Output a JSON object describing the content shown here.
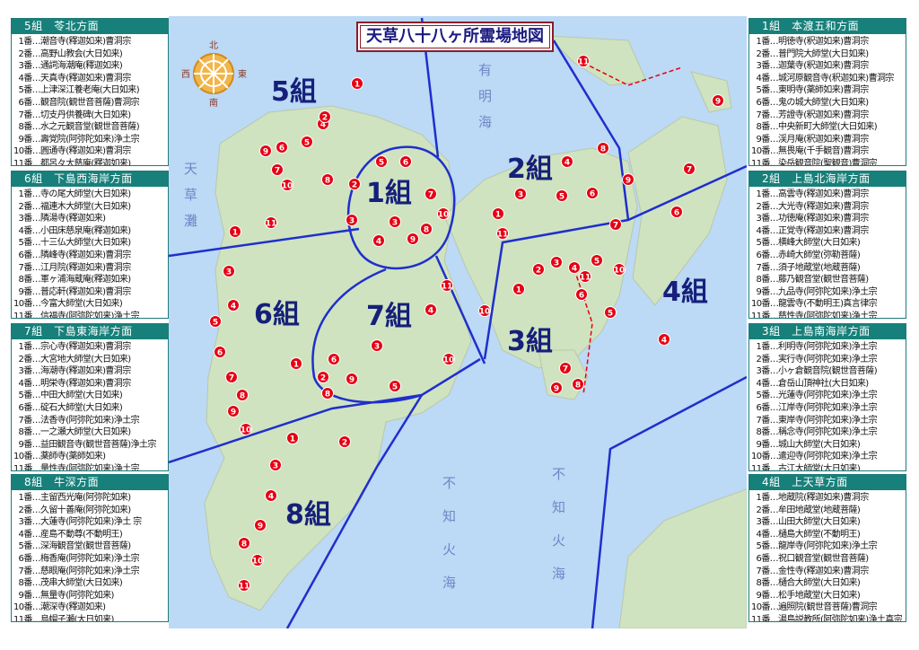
{
  "title": "天草八十八ヶ所霊場地図",
  "compass": {
    "north": "北",
    "east": "東",
    "west": "西",
    "south": "南",
    "icon": "dharma-wheel-compass-icon"
  },
  "sea_labels": {
    "amakusa_nada": "天草灘",
    "ariake_kai": "有明海",
    "shiranui_kai": "不知火海",
    "shiranui_kai_east": "不知火海"
  },
  "group_labels": [
    "1組",
    "2組",
    "3組",
    "4組",
    "5組",
    "6組",
    "7組",
    "8組"
  ],
  "colors": {
    "header": "#17807a",
    "boundary": "#1f2fcc",
    "marker": "#e60012",
    "sea": "#bcd9f5",
    "land": "#cfe3c0"
  },
  "left_panels": [
    {
      "header": "5組　苓北方面",
      "items": [
        [
          "1番…",
          "潮音寺(釋迦如来)曹洞宗"
        ],
        [
          "2番…",
          "高野山教会(大日如来)"
        ],
        [
          "3番…",
          "通詞海潮庵(釋迦如来)"
        ],
        [
          "4番…",
          "天真寺(釋迦如来)曹洞宗"
        ],
        [
          "5番…",
          "上津深江養老庵(大日如来)"
        ],
        [
          "6番…",
          "観音院(観世音菩薩)曹洞宗"
        ],
        [
          "7番…",
          "切支丹供養碑(大日如来)"
        ],
        [
          "8番…",
          "水之元観音堂(観世音菩薩)"
        ],
        [
          "9番…",
          "壽覚院(阿弥陀如来)浄土宗"
        ],
        [
          "10番…",
          "圓通寺(釋迦如来)曹洞宗"
        ],
        [
          "11番…",
          "都呂々大慈庵(釋迦如来)"
        ]
      ]
    },
    {
      "header": "6組　下島西海岸方面",
      "items": [
        [
          "1番…",
          "寺の尾大師堂(大日如来)"
        ],
        [
          "2番…",
          "福連木大師堂(大日如来)"
        ],
        [
          "3番…",
          "隣湯寺(釋迦如来)"
        ],
        [
          "4番…",
          "小田床慈泉庵(釋迦如来)"
        ],
        [
          "5番…",
          "十三仏大師堂(大日如来)"
        ],
        [
          "6番…",
          "隣峰寺(釋迦如来)曹洞宗"
        ],
        [
          "7番…",
          "江月院(釋迦如来)曹洞宗"
        ],
        [
          "8番…",
          "軍ヶ浦海蔵庵(釋迦如来)"
        ],
        [
          "9番…",
          "普応軒(釋迦如来)曹洞宗"
        ],
        [
          "10番…",
          "今富大師堂(大日如来)"
        ],
        [
          "11番…",
          "信福寺(阿弥陀如来)浄土宗"
        ]
      ]
    },
    {
      "header": "7組　下島東海岸方面",
      "items": [
        [
          "1番…",
          "宗心寺(釋迦如来)曹洞宗"
        ],
        [
          "2番…",
          "大宮地大師堂(大日如来)"
        ],
        [
          "3番…",
          "海潮寺(釋迦如来)曹洞宗"
        ],
        [
          "4番…",
          "明栄寺(釋迦如来)曹洞宗"
        ],
        [
          "5番…",
          "中田大師堂(大日如来)"
        ],
        [
          "6番…",
          "碇石大師堂(大日如来)"
        ],
        [
          "7番…",
          "法香寺(阿弥陀如来)浄土宗"
        ],
        [
          "8番…",
          "一之瀬大師堂(大日如来)"
        ],
        [
          "9番…",
          "益田観音寺(観世音菩薩)浄土宗"
        ],
        [
          "10番…",
          "薬師寺(薬師如来)"
        ],
        [
          "11番…",
          "量性寺(阿弥陀如来)浄土宗"
        ]
      ]
    },
    {
      "header": "8組　牛深方面",
      "items": [
        [
          "1番…",
          "主留西光庵(阿弥陀如来)"
        ],
        [
          "2番…",
          "久留十善庵(阿弥陀如来)"
        ],
        [
          "3番…",
          "大蓮寺(阿弥陀如来)浄土 宗"
        ],
        [
          "4番…",
          "産島不動尊(不動明王)"
        ],
        [
          "5番…",
          "深海観音堂(観世音菩薩)"
        ],
        [
          "6番…",
          "梅香庵(阿弥陀如来)浄土宗"
        ],
        [
          "7番…",
          "慈眼庵(阿弥陀如来)浄土宗"
        ],
        [
          "8番…",
          "茂串大師堂(大日如来)"
        ],
        [
          "9番…",
          "無量寺(阿弥陀如来)"
        ],
        [
          "10番…",
          "潮深寺(釋迦如来)"
        ],
        [
          "11番…",
          "烏帽子瀬(大日如来)"
        ]
      ]
    }
  ],
  "right_panels": [
    {
      "header": "1組　本渡五和方面",
      "items": [
        [
          "1番…",
          "明徳寺(釈迦如来)曹洞宗"
        ],
        [
          "2番…",
          "普門院大師堂(大日如来)"
        ],
        [
          "3番…",
          "迦葉寺(釈迦如来)曹洞宗"
        ],
        [
          "4番…",
          "城河原観音寺(釈迦如来)曹洞宗"
        ],
        [
          "5番…",
          "東明寺(薬師如来)曹洞宗"
        ],
        [
          "6番…",
          "鬼の城大師堂(大日如来)"
        ],
        [
          "7番…",
          "芳證寺(釈迦如来)曹洞宗"
        ],
        [
          "8番…",
          "中央新町大師堂(大日如来)"
        ],
        [
          "9番…",
          "渓月庵(釈迦如来)曹洞宗"
        ],
        [
          "10番…",
          "無畏庵(千手観音)曹洞宗"
        ],
        [
          "11番…",
          "染岳観音院(聖観音)曹洞宗"
        ]
      ]
    },
    {
      "header": "2組　上島北海岸方面",
      "items": [
        [
          "1番…",
          "高雲寺(釋迦如来)曹洞宗"
        ],
        [
          "2番…",
          "大光寺(釋迦如来)曹洞宗"
        ],
        [
          "3番…",
          "功徳庵(釋迦如来)曹洞宗"
        ],
        [
          "4番…",
          "正覚寺(釋迦如来)曹洞宗"
        ],
        [
          "5番…",
          "横峰大師堂(大日如来)"
        ],
        [
          "6番…",
          "赤崎大師堂(弥勒菩薩)"
        ],
        [
          "7番…",
          "須子地蔵堂(地蔵菩薩)"
        ],
        [
          "8番…",
          "藤乃観音堂(観世音菩薩)"
        ],
        [
          "9番…",
          "九品寺(阿弥陀如来)浄土宗"
        ],
        [
          "10番…",
          "龍雲寺(不動明王)真言律宗"
        ],
        [
          "11番…",
          "慈性寺(阿弥陀如来)浄土宗"
        ]
      ]
    },
    {
      "header": "3組　上島南海岸方面",
      "items": [
        [
          "1番…",
          "利明寺(阿弥陀如来)浄土宗"
        ],
        [
          "2番…",
          "実行寺(阿弥陀如来)浄土宗"
        ],
        [
          "3番…",
          "小ヶ倉観音院(観世音菩薩)"
        ],
        [
          "4番…",
          "倉岳山頂神社(大日如来)"
        ],
        [
          "5番…",
          "光蓮寺(阿弥陀如来)浄土宗"
        ],
        [
          "6番…",
          "江岸寺(阿弥陀如来)浄土宗"
        ],
        [
          "7番…",
          "東岸寺(阿弥陀如来)浄土宗"
        ],
        [
          "8番…",
          "稱念寺(阿弥陀如来)浄土宗"
        ],
        [
          "9番…",
          "城山大師堂(大日如来)"
        ],
        [
          "10番…",
          "遣迎寺(阿弥陀如来)浄土宗"
        ],
        [
          "11番…",
          "古江大師堂(大日如来)"
        ]
      ]
    },
    {
      "header": "4組　上天草方面",
      "items": [
        [
          "1番…",
          "地蔵院(釋迦如来)曹洞宗"
        ],
        [
          "2番…",
          "牟田地蔵堂(地蔵菩薩)"
        ],
        [
          "3番…",
          "山田大師堂(大日如来)"
        ],
        [
          "4番…",
          "樋島大師堂(不動明王)"
        ],
        [
          "5番…",
          "龍岸寺(阿弥陀如来)浄土宗"
        ],
        [
          "6番…",
          "祝口観音堂(観世音菩薩)"
        ],
        [
          "7番…",
          "金性寺(釋迦如来)曹洞宗"
        ],
        [
          "8番…",
          "樋合大師堂(大日如来)"
        ],
        [
          "9番…",
          "松手地蔵堂(大日如来)"
        ],
        [
          "10番…",
          "遍照院(観世音菩薩)曹洞宗"
        ],
        [
          "11番…",
          "湯島説教所(阿弥陀如来)浄土真宗"
        ]
      ]
    }
  ]
}
